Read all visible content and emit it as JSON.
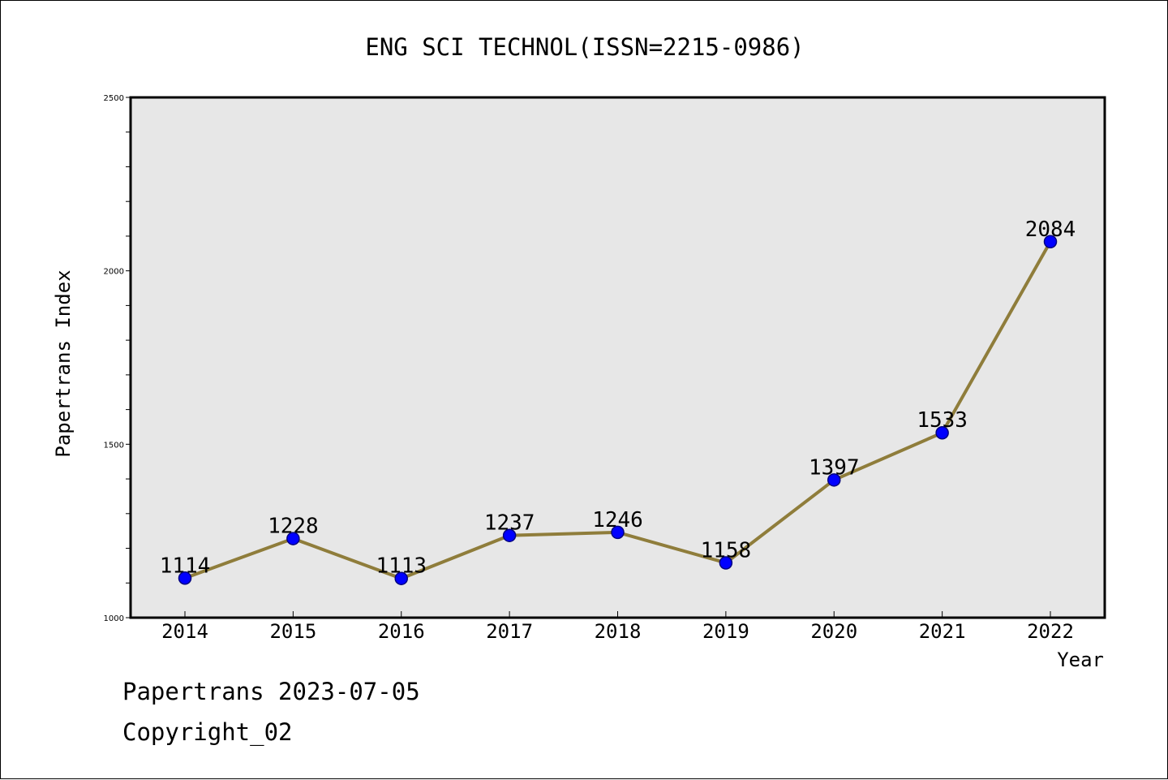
{
  "chart_data": {
    "type": "line",
    "title": "ENG SCI TECHNOL(ISSN=2215-0986)",
    "xlabel": "Year",
    "ylabel": "Papertrans Index",
    "categories": [
      "2014",
      "2015",
      "2016",
      "2017",
      "2018",
      "2019",
      "2020",
      "2021",
      "2022"
    ],
    "series": [
      {
        "values": [
          1114,
          1228,
          1113,
          1237,
          1246,
          1158,
          1397,
          1533,
          2084
        ]
      }
    ],
    "data_labels": [
      "1114",
      "1228",
      "1113",
      "1237",
      "1246",
      "1158",
      "1397",
      "1533",
      "2084"
    ],
    "ylim": [
      1000,
      2500
    ],
    "y_ticks": [
      "1000",
      "1500",
      "2000",
      "2500"
    ],
    "y_minor_step": 100,
    "grid": false,
    "colors": {
      "plot_background": "#e7e7e7",
      "line": "#8f7d3b",
      "marker_fill": "#0000ff",
      "marker_stroke": "#000080"
    }
  },
  "footer": {
    "source": "Papertrans 2023-07-05",
    "copyright": "Copyright_02"
  }
}
